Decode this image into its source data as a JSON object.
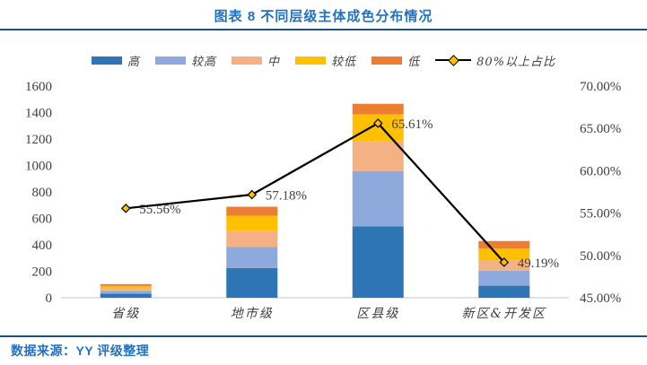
{
  "header": {
    "title": "图表 8 不同层级主体成色分布情况",
    "title_color": "#2173C2",
    "rule_color": "#1F4E79"
  },
  "footer": {
    "source": "数据来源：YY 评级整理",
    "text_color": "#2173C2",
    "rule_color": "#1F4E79"
  },
  "chart_data": {
    "type": "bar",
    "stacked": true,
    "grid": false,
    "legend_position": "top",
    "title": "图表 8 不同层级主体成色分布情况",
    "categories": [
      "省级",
      "地市级",
      "区县级",
      "新区&开发区"
    ],
    "series": [
      {
        "name": "高",
        "color": "#2E75B6",
        "values": [
          30,
          225,
          540,
          91
        ]
      },
      {
        "name": "较高",
        "color": "#8EA9DB",
        "values": [
          22,
          158,
          418,
          113
        ]
      },
      {
        "name": "中",
        "color": "#F4B183",
        "values": [
          15,
          124,
          226,
          79
        ]
      },
      {
        "name": "较低",
        "color": "#FFC000",
        "values": [
          22,
          113,
          203,
          90
        ]
      },
      {
        "name": "低",
        "color": "#ED7D31",
        "values": [
          14,
          68,
          79,
          56
        ]
      }
    ],
    "line_series": {
      "name": "80%以上占比",
      "axis": "right",
      "values": [
        55.56,
        57.18,
        65.61,
        49.19
      ],
      "point_labels": [
        "55.56%",
        "57.18%",
        "65.61%",
        "49.19%"
      ],
      "line_color": "#000000",
      "marker": "diamond",
      "marker_fill": "#FFC000"
    },
    "left_axis": {
      "min": 0,
      "max": 1600,
      "step": 200,
      "tick_labels": [
        "0",
        "200",
        "400",
        "600",
        "800",
        "1000",
        "1200",
        "1400",
        "1600"
      ]
    },
    "right_axis": {
      "min": 45,
      "max": 70,
      "step": 5,
      "tick_labels": [
        "45.00%",
        "50.00%",
        "55.00%",
        "60.00%",
        "65.00%",
        "70.00%"
      ]
    },
    "axis_line_color": "#D9D9D9"
  }
}
